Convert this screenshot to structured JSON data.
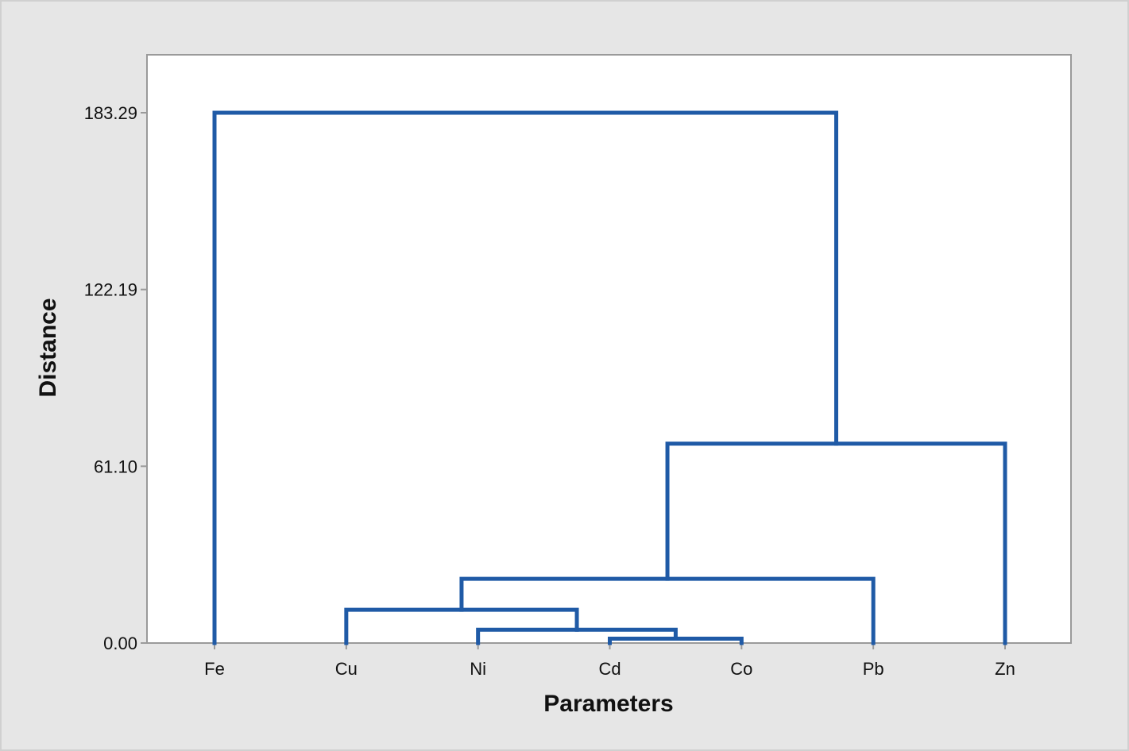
{
  "chart_data": {
    "type": "dendrogram",
    "title": "",
    "xlabel": "Parameters",
    "ylabel": "Distance",
    "ylim": [
      0,
      205
    ],
    "yticks": [
      0.0,
      61.1,
      122.19,
      183.29
    ],
    "ytick_labels": [
      "0.00",
      "61.10",
      "122.19",
      "183.29"
    ],
    "leaves": [
      "Fe",
      "Cu",
      "Ni",
      "Cd",
      "Co",
      "Pb",
      "Zn"
    ],
    "merges": [
      {
        "left": "Cd",
        "right": "Co",
        "height": 1.5
      },
      {
        "left": "Ni",
        "right": "Cd+Co",
        "height": 4.6
      },
      {
        "left": "Cu",
        "right": "Ni+Cd+Co",
        "height": 11.5
      },
      {
        "left": "Cu+Ni+Cd+Co",
        "right": "Pb",
        "height": 22.2
      },
      {
        "left": "Cu+Ni+Cd+Co+Pb",
        "right": "Zn",
        "height": 68.9
      },
      {
        "left": "Fe",
        "right": "Cu+Ni+Cd+Co+Pb+Zn",
        "height": 183.29
      }
    ],
    "grid": false,
    "legend": "none",
    "colors": {
      "branch": "#1f5aa6",
      "plot_background": "#ffffff",
      "figure_background": "#e6e6e6",
      "frame": "#9a9a9a"
    }
  }
}
